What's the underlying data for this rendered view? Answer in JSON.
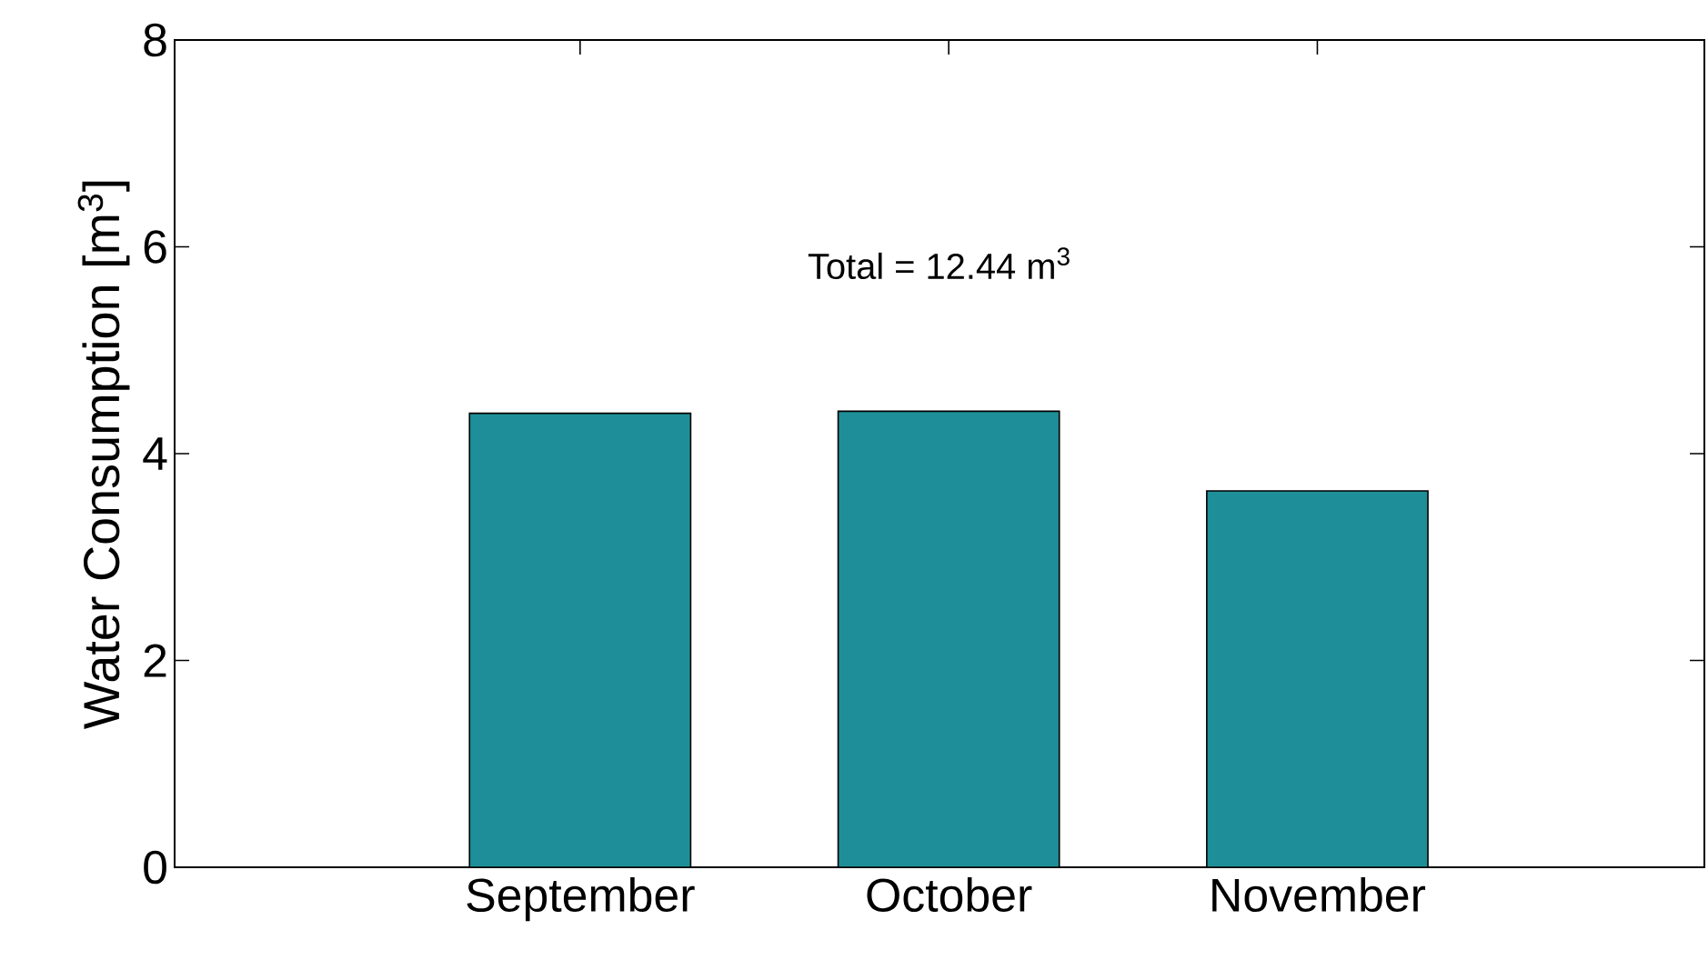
{
  "chart_data": {
    "type": "bar",
    "ylabel": "Water Consumption [m$^{3}$]",
    "categories": [
      "September",
      "October",
      "November"
    ],
    "values": [
      4.39,
      4.41,
      3.64
    ],
    "color": "#1e8f98",
    "ylim": [
      0,
      8
    ],
    "yticks": [
      0,
      2,
      4,
      6,
      8
    ],
    "annotations": [
      "Total = 12.44 m$^{3}$"
    ]
  }
}
